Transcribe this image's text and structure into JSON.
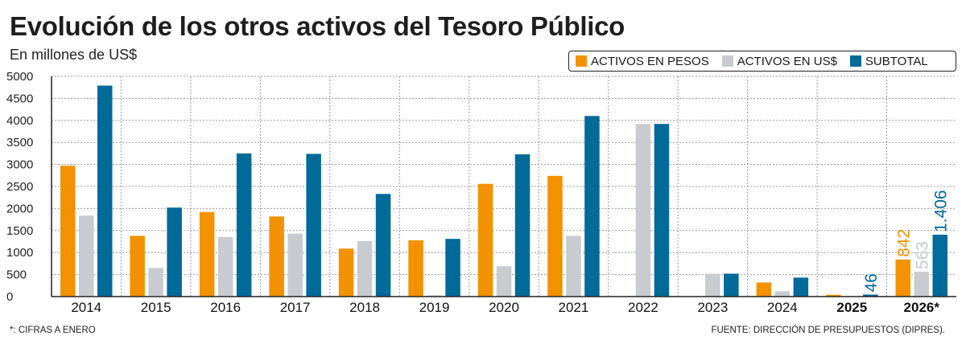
{
  "title": "Evolución de los otros activos del Tesoro Público",
  "subtitle": "En millones de US$",
  "footnote": "*: CIFRAS A ENERO",
  "source": "FUENTE: DIRECCIÓN DE PRESUPUESTOS (DIPRES).",
  "colors": {
    "pesos": "#f39200",
    "usd": "#c8ccd0",
    "subtotal": "#006a98",
    "grid": "#9a9a9a",
    "axis": "#222222"
  },
  "chart_data": {
    "type": "bar",
    "title": "Evolución de los otros activos del Tesoro Público",
    "ylabel": "En millones de US$",
    "xlabel": "",
    "ylim": [
      0,
      5000
    ],
    "yticks": [
      0,
      500,
      1000,
      1500,
      2000,
      2500,
      3000,
      3500,
      4000,
      4500,
      5000
    ],
    "grid": true,
    "legend_position": "top-right",
    "categories": [
      "2014",
      "2015",
      "2016",
      "2017",
      "2018",
      "2019",
      "2020",
      "2021",
      "2022",
      "2023",
      "2024",
      "2025",
      "2026*"
    ],
    "bold_categories": [
      "2025",
      "2026*"
    ],
    "series": [
      {
        "name": "ACTIVOS EN PESOS",
        "key": "pesos",
        "values": [
          2970,
          1380,
          1920,
          1820,
          1090,
          1280,
          2560,
          2740,
          0,
          0,
          320,
          40,
          842
        ]
      },
      {
        "name": "ACTIVOS EN US$",
        "key": "usd",
        "values": [
          1840,
          650,
          1350,
          1430,
          1260,
          30,
          690,
          1380,
          3920,
          520,
          120,
          0,
          563
        ]
      },
      {
        "name": "SUBTOTAL",
        "key": "subtotal",
        "values": [
          4790,
          2020,
          3250,
          3240,
          2330,
          1310,
          3230,
          4100,
          3920,
          520,
          430,
          46,
          1406
        ]
      }
    ],
    "annotations": [
      {
        "category": "2025",
        "series": "SUBTOTAL",
        "text": "46"
      },
      {
        "category": "2026*",
        "series": "ACTIVOS EN PESOS",
        "text": "842"
      },
      {
        "category": "2026*",
        "series": "ACTIVOS EN US$",
        "text": "563"
      },
      {
        "category": "2026*",
        "series": "SUBTOTAL",
        "text": "1.406"
      }
    ]
  }
}
